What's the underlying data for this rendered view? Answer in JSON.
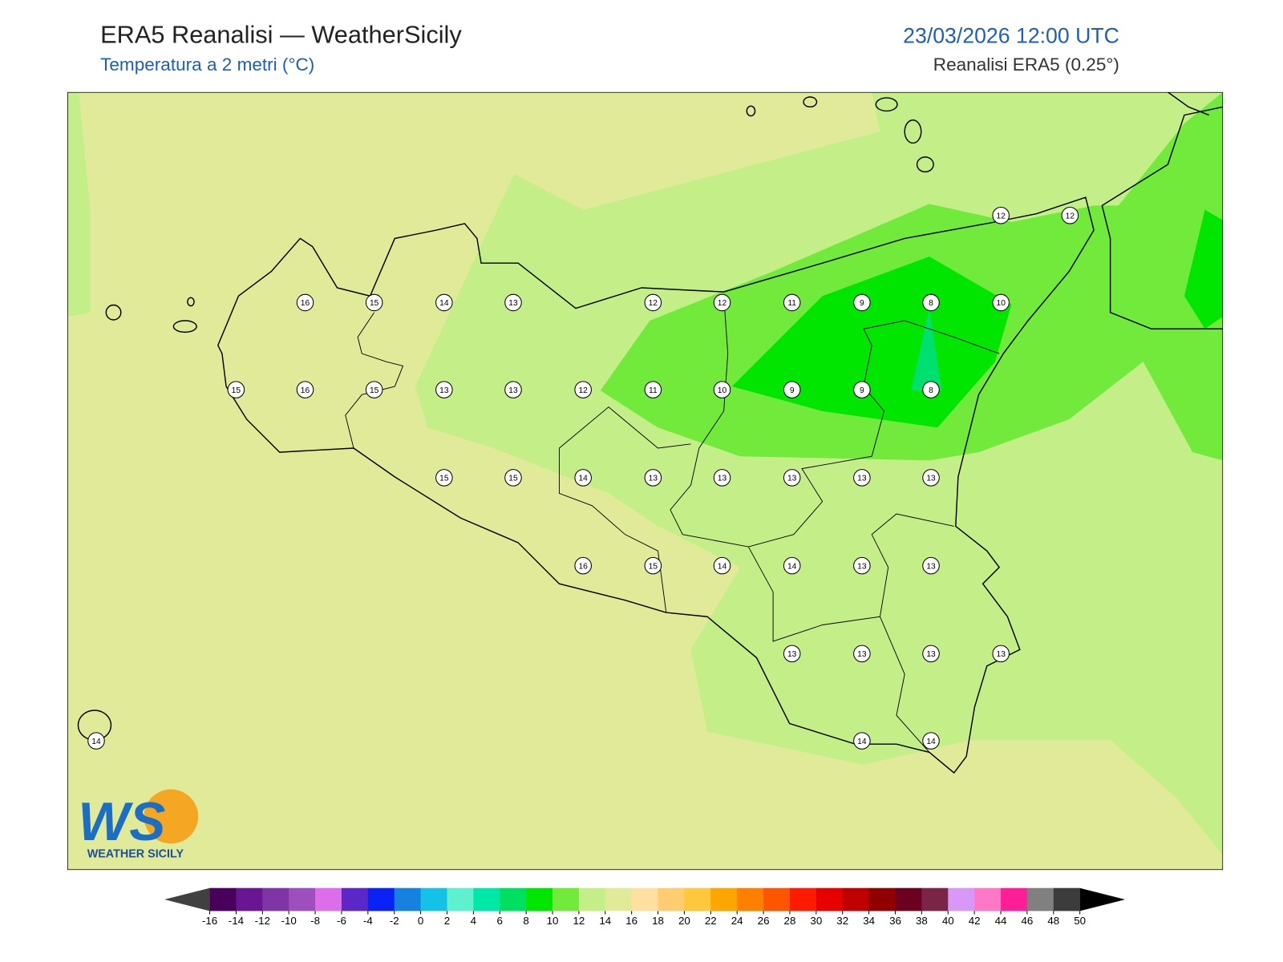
{
  "header": {
    "title": "ERA5 Reanalisi — WeatherSicily",
    "subtitle": "Temperatura a 2 metri (°C)",
    "date": "23/03/2026 12:00 UTC",
    "source": "Reanalisi ERA5 (0.25°)"
  },
  "stations": [
    12,
    12,
    16,
    15,
    14,
    13,
    12,
    12,
    11,
    9,
    8,
    10,
    15,
    16,
    15,
    13,
    13,
    12,
    11,
    10,
    9,
    9,
    8,
    15,
    15,
    14,
    13,
    13,
    13,
    13,
    13,
    16,
    15,
    14,
    14,
    13,
    13,
    13,
    13,
    13,
    13,
    14,
    14,
    14
  ],
  "logo": {
    "letters": "WS",
    "name": "WEATHER SICILY"
  },
  "colorbar": {
    "ticks": [
      -16,
      -14,
      -12,
      -10,
      -8,
      -6,
      -4,
      -2,
      0,
      2,
      4,
      6,
      8,
      10,
      12,
      14,
      16,
      18,
      20,
      22,
      24,
      26,
      28,
      30,
      32,
      34,
      36,
      38,
      40,
      42,
      44,
      46,
      48,
      50
    ],
    "colors": [
      "#48005a",
      "#6a1591",
      "#7f35a6",
      "#9c4fbd",
      "#dc6ee9",
      "#5c27c6",
      "#0a22f5",
      "#1581e0",
      "#13c2e6",
      "#5ff0d0",
      "#00e8a8",
      "#00e060",
      "#00e600",
      "#72ea3c",
      "#c4ef88",
      "#e1ea98",
      "#ffe0a0",
      "#ffcc70",
      "#ffc83c",
      "#ffa500",
      "#ff8000",
      "#ff5500",
      "#ff1a00",
      "#e60000",
      "#c00000",
      "#900000",
      "#6b0020",
      "#7a2545",
      "#d898f8",
      "#ff78c8",
      "#ff1e96",
      "#808080",
      "#3c3c3c"
    ],
    "under_color": "#404040",
    "over_color": "#000000"
  }
}
